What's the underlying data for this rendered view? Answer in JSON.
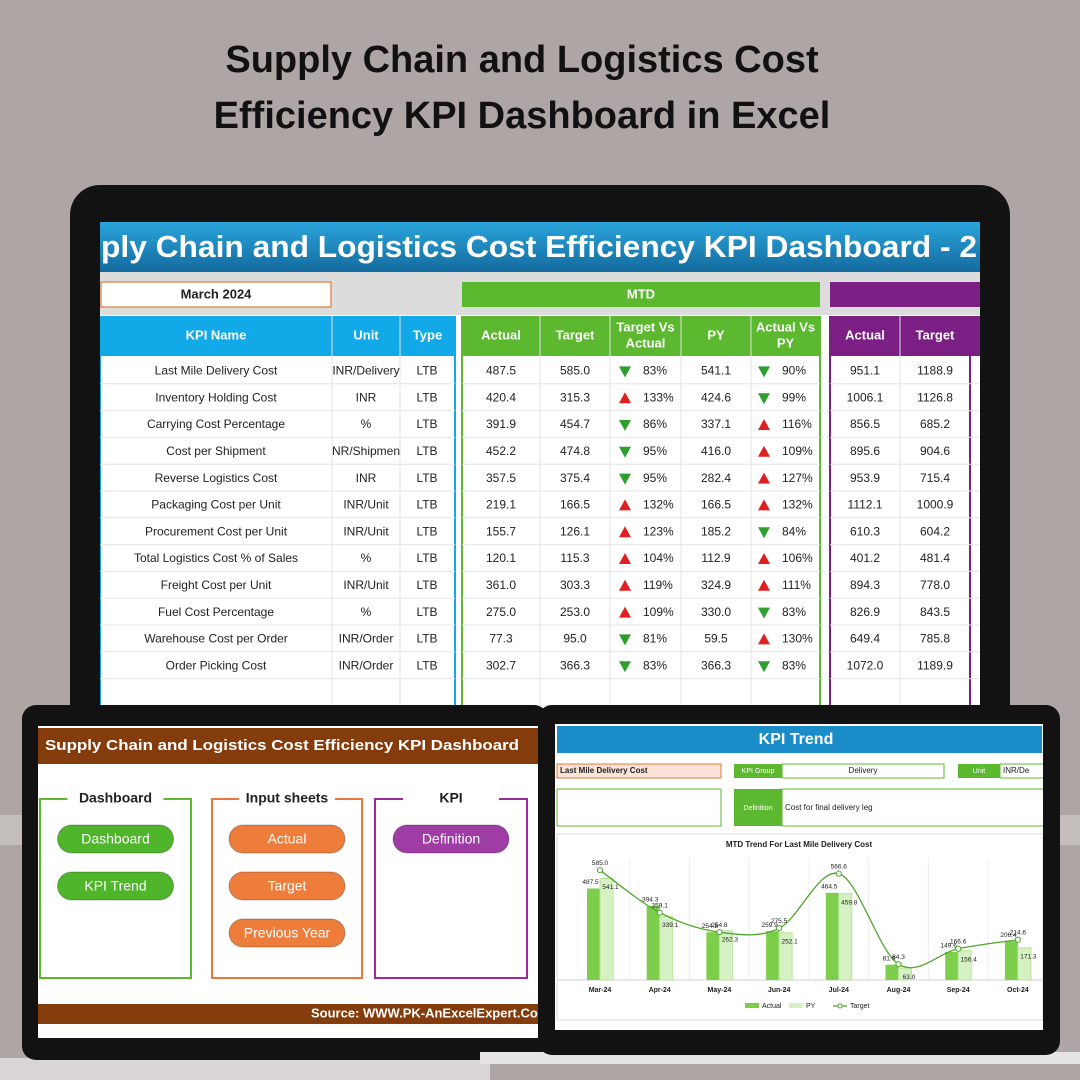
{
  "header": {
    "title_lines": [
      "Supply Chain and Logistics Cost",
      "Efficiency KPI Dashboard in Excel"
    ]
  },
  "main_screen": {
    "title": "ply Chain and Logistics Cost Efficiency KPI Dashboard - 2",
    "month": "March 2024",
    "mtd_label": "MTD",
    "columns": {
      "kpi": [
        [
          "KPI Name"
        ],
        [
          "Unit"
        ],
        [
          "Type"
        ]
      ],
      "mtd": [
        [
          "Actual"
        ],
        [
          "Target"
        ],
        [
          "Target Vs",
          "Actual"
        ],
        [
          "PY"
        ],
        [
          "Actual Vs",
          "PY"
        ]
      ],
      "ytd": [
        [
          "Actual"
        ],
        [
          "Target"
        ]
      ]
    },
    "rows": [
      [
        "Last Mile Delivery Cost",
        "INR/Delivery",
        "LTB",
        "487.5",
        "585.0",
        "83%",
        "541.1",
        "90%",
        "951.1",
        "1188.9"
      ],
      [
        "Inventory Holding Cost",
        "INR",
        "LTB",
        "420.4",
        "315.3",
        "133%",
        "424.6",
        "99%",
        "1006.1",
        "1126.8"
      ],
      [
        "Carrying Cost Percentage",
        "%",
        "LTB",
        "391.9",
        "454.7",
        "86%",
        "337.1",
        "116%",
        "856.5",
        "685.2"
      ],
      [
        "Cost per Shipment",
        "NR/Shipmen",
        "LTB",
        "452.2",
        "474.8",
        "95%",
        "416.0",
        "109%",
        "895.6",
        "904.6"
      ],
      [
        "Reverse Logistics Cost",
        "INR",
        "LTB",
        "357.5",
        "375.4",
        "95%",
        "282.4",
        "127%",
        "953.9",
        "715.4"
      ],
      [
        "Packaging Cost per Unit",
        "INR/Unit",
        "LTB",
        "219.1",
        "166.5",
        "132%",
        "166.5",
        "132%",
        "1112.1",
        "1000.9"
      ],
      [
        "Procurement Cost per Unit",
        "INR/Unit",
        "LTB",
        "155.7",
        "126.1",
        "123%",
        "185.2",
        "84%",
        "610.3",
        "604.2"
      ],
      [
        "Total Logistics Cost % of Sales",
        "%",
        "LTB",
        "120.1",
        "115.3",
        "104%",
        "112.9",
        "106%",
        "401.2",
        "481.4"
      ],
      [
        "Freight Cost per Unit",
        "INR/Unit",
        "LTB",
        "361.0",
        "303.3",
        "119%",
        "324.9",
        "111%",
        "894.3",
        "778.0"
      ],
      [
        "Fuel Cost Percentage",
        "%",
        "LTB",
        "275.0",
        "253.0",
        "109%",
        "330.0",
        "83%",
        "826.9",
        "843.5"
      ],
      [
        "Warehouse Cost per Order",
        "INR/Order",
        "LTB",
        "77.3",
        "95.0",
        "81%",
        "59.5",
        "130%",
        "649.4",
        "785.8"
      ],
      [
        "Order Picking Cost",
        "INR/Order",
        "LTB",
        "302.7",
        "366.3",
        "83%",
        "366.3",
        "83%",
        "1072.0",
        "1189.9"
      ]
    ]
  },
  "left_screen": {
    "title": "Supply Chain and Logistics Cost Efficiency KPI Dashboard",
    "panels": [
      {
        "heading": "Dashboard",
        "buttons": [
          "Dashboard",
          "KPI Trend"
        ]
      },
      {
        "heading": "Input sheets",
        "buttons": [
          "Actual",
          "Target",
          "Previous Year"
        ]
      },
      {
        "heading": "KPI",
        "buttons": [
          "Definition"
        ]
      }
    ],
    "source": "Source: WWW.PK-AnExcelExpert.Co"
  },
  "right_screen": {
    "title": "KPI Trend",
    "kpi": "Last Mile Delivery Cost",
    "group_label": "KPI Group",
    "group": "Delivery",
    "unit_label": "Unit",
    "unit": "INR/De",
    "definition_label": "Definition",
    "definition": "Cost for final delivery leg",
    "chart_data": {
      "type": "bar",
      "title": "MTD Trend For Last Mile Delivery Cost",
      "categories": [
        "Mar-24",
        "Apr-24",
        "May-24",
        "Jun-24",
        "Jul-24",
        "Aug-24",
        "Sep-24",
        "Oct-24"
      ],
      "ylim": [
        0,
        650
      ],
      "series": [
        {
          "name": "Actual",
          "color": "#7dcf4b",
          "values": [
            487.5,
            394.3,
            254.8,
            259.9,
            464.5,
            81.6,
            149.6,
            206.4
          ],
          "value_labels": [
            "487.5",
            "394.3",
            "254.8",
            "259.9",
            "464.5",
            "81.6",
            "149.6",
            "206.4"
          ]
        },
        {
          "name": "PY",
          "color": "#d6f1c4",
          "values": [
            541.1,
            339.1,
            262.3,
            252.1,
            459.8,
            63.0,
            156.4,
            171.3
          ],
          "value_labels": [
            "541.1",
            "339.1",
            "262.3",
            "252.1",
            "459.8",
            "63.0",
            "156.4",
            "171.3"
          ]
        },
        {
          "name": "Target",
          "type": "line",
          "color": "#4ea62c",
          "values": [
            585.0,
            359.1,
            254.8,
            275.5,
            566.6,
            84.3,
            166.6,
            214.6
          ],
          "value_labels": [
            "585.0",
            "359.1",
            "254.8",
            "275.5",
            "566.6",
            "84.3",
            "166.6",
            "214.6"
          ]
        }
      ]
    }
  }
}
